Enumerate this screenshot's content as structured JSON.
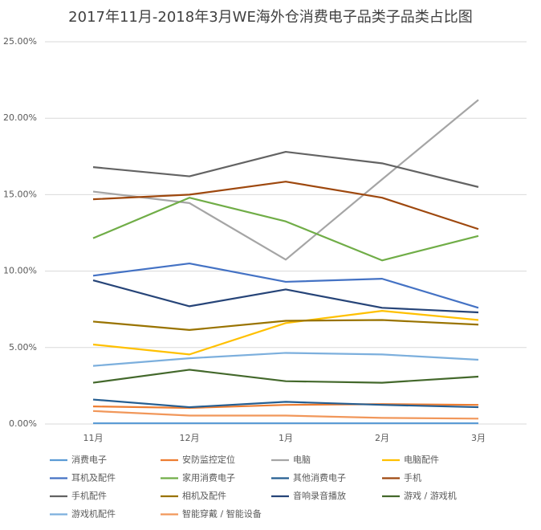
{
  "chart_data": {
    "type": "line",
    "title": "2017年11月-2018年3月WE海外仓消费电子品类子品类占比图",
    "categories": [
      "11月",
      "12月",
      "1月",
      "2月",
      "3月"
    ],
    "ylim": [
      0,
      25
    ],
    "yticks": [
      {
        "value": 0,
        "label": "0.00%"
      },
      {
        "value": 5,
        "label": "5.00%"
      },
      {
        "value": 10,
        "label": "10.00%"
      },
      {
        "value": 15,
        "label": "15.00%"
      },
      {
        "value": 20,
        "label": "20.00%"
      },
      {
        "value": 25,
        "label": "25.00%"
      }
    ],
    "grid": true,
    "series": [
      {
        "name": "消费电子",
        "color": "#5b9bd5",
        "values": [
          0.05,
          0.05,
          0.05,
          0.05,
          0.05
        ]
      },
      {
        "name": "安防监控定位",
        "color": "#ed7d31",
        "values": [
          1.15,
          1.05,
          1.25,
          1.3,
          1.25
        ]
      },
      {
        "name": "电脑",
        "color": "#a5a5a5",
        "values": [
          15.2,
          14.45,
          10.75,
          16.0,
          21.2
        ]
      },
      {
        "name": "电脑配件",
        "color": "#ffc000",
        "values": [
          5.2,
          4.55,
          6.6,
          7.4,
          6.8
        ]
      },
      {
        "name": "耳机及配件",
        "color": "#4472c4",
        "values": [
          9.7,
          10.5,
          9.3,
          9.5,
          7.6
        ]
      },
      {
        "name": "家用消费电子",
        "color": "#70ad47",
        "values": [
          12.15,
          14.8,
          13.25,
          10.7,
          12.3
        ]
      },
      {
        "name": "其他消费电子",
        "color": "#255e91",
        "values": [
          1.6,
          1.1,
          1.45,
          1.25,
          1.1
        ]
      },
      {
        "name": "手机",
        "color": "#9e480e",
        "values": [
          14.7,
          15.0,
          15.85,
          14.8,
          12.75
        ]
      },
      {
        "name": "手机配件",
        "color": "#636363",
        "values": [
          16.8,
          16.2,
          17.8,
          17.05,
          15.5
        ]
      },
      {
        "name": "相机及配件",
        "color": "#997300",
        "values": [
          6.7,
          6.15,
          6.75,
          6.8,
          6.5
        ]
      },
      {
        "name": "音响录音播放",
        "color": "#264478",
        "values": [
          9.4,
          7.7,
          8.8,
          7.6,
          7.3
        ]
      },
      {
        "name": "游戏 / 游戏机",
        "color": "#43682b",
        "values": [
          2.7,
          3.55,
          2.8,
          2.7,
          3.1
        ]
      },
      {
        "name": "游戏机配件",
        "color": "#7cafdd",
        "values": [
          3.8,
          4.3,
          4.65,
          4.55,
          4.2
        ]
      },
      {
        "name": "智能穿戴 / 智能设备",
        "color": "#f1975a",
        "values": [
          0.85,
          0.55,
          0.55,
          0.4,
          0.35
        ]
      }
    ]
  }
}
